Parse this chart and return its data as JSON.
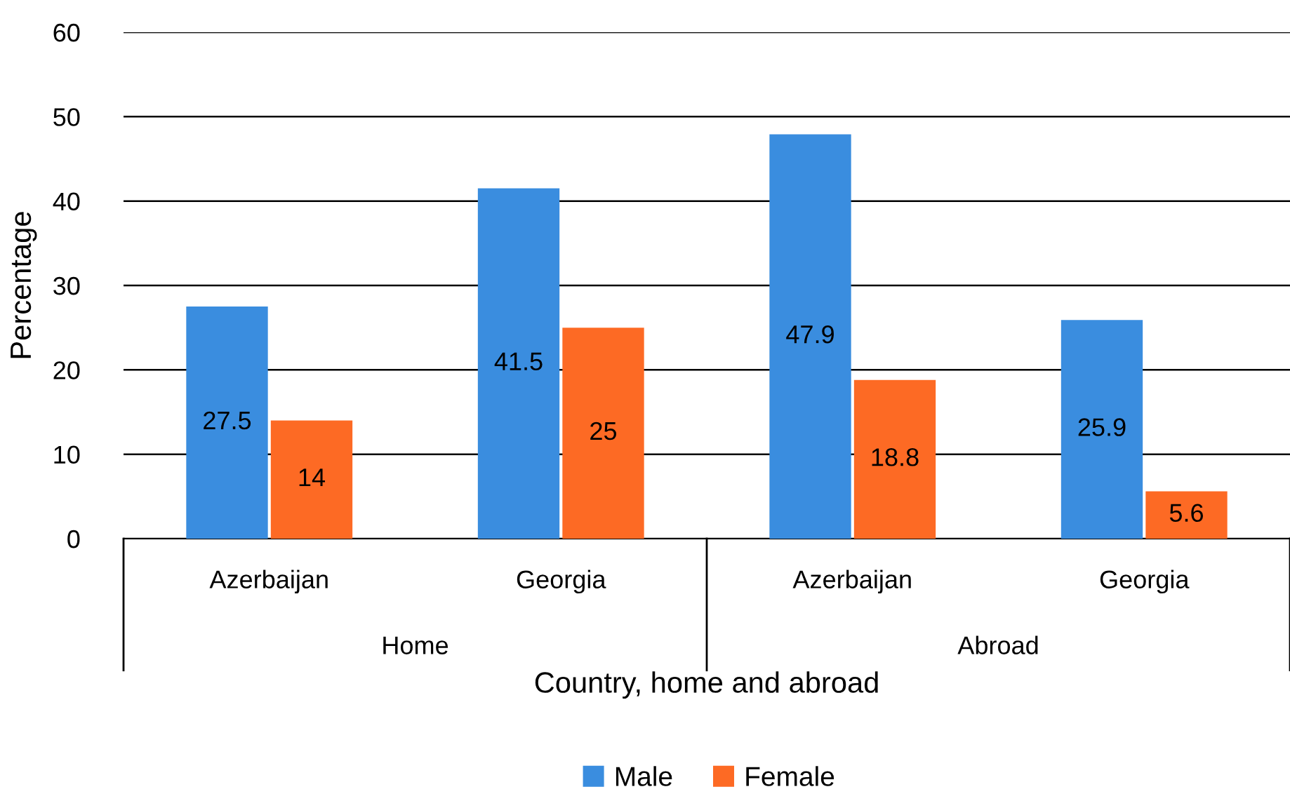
{
  "chart_data": {
    "type": "bar",
    "xlabel": "Country, home and abroad",
    "ylabel": "Percentage",
    "categories": [
      "Azerbaijan",
      "Georgia",
      "Azerbaijan",
      "Georgia"
    ],
    "series": [
      {
        "name": "Male",
        "color": "#3a8ddf",
        "values": [
          27.5,
          41.5,
          47.9,
          25.9
        ]
      },
      {
        "name": "Female",
        "color": "#fd6a24",
        "values": [
          14,
          25,
          18.8,
          5.6
        ]
      }
    ],
    "annotations": [
      "Home",
      "Abroad"
    ],
    "ylim": [
      0,
      60
    ],
    "yticks": [
      0,
      10,
      20,
      30,
      40,
      50,
      60
    ],
    "grid": "y",
    "legend": "bottom",
    "data_labels": true
  }
}
